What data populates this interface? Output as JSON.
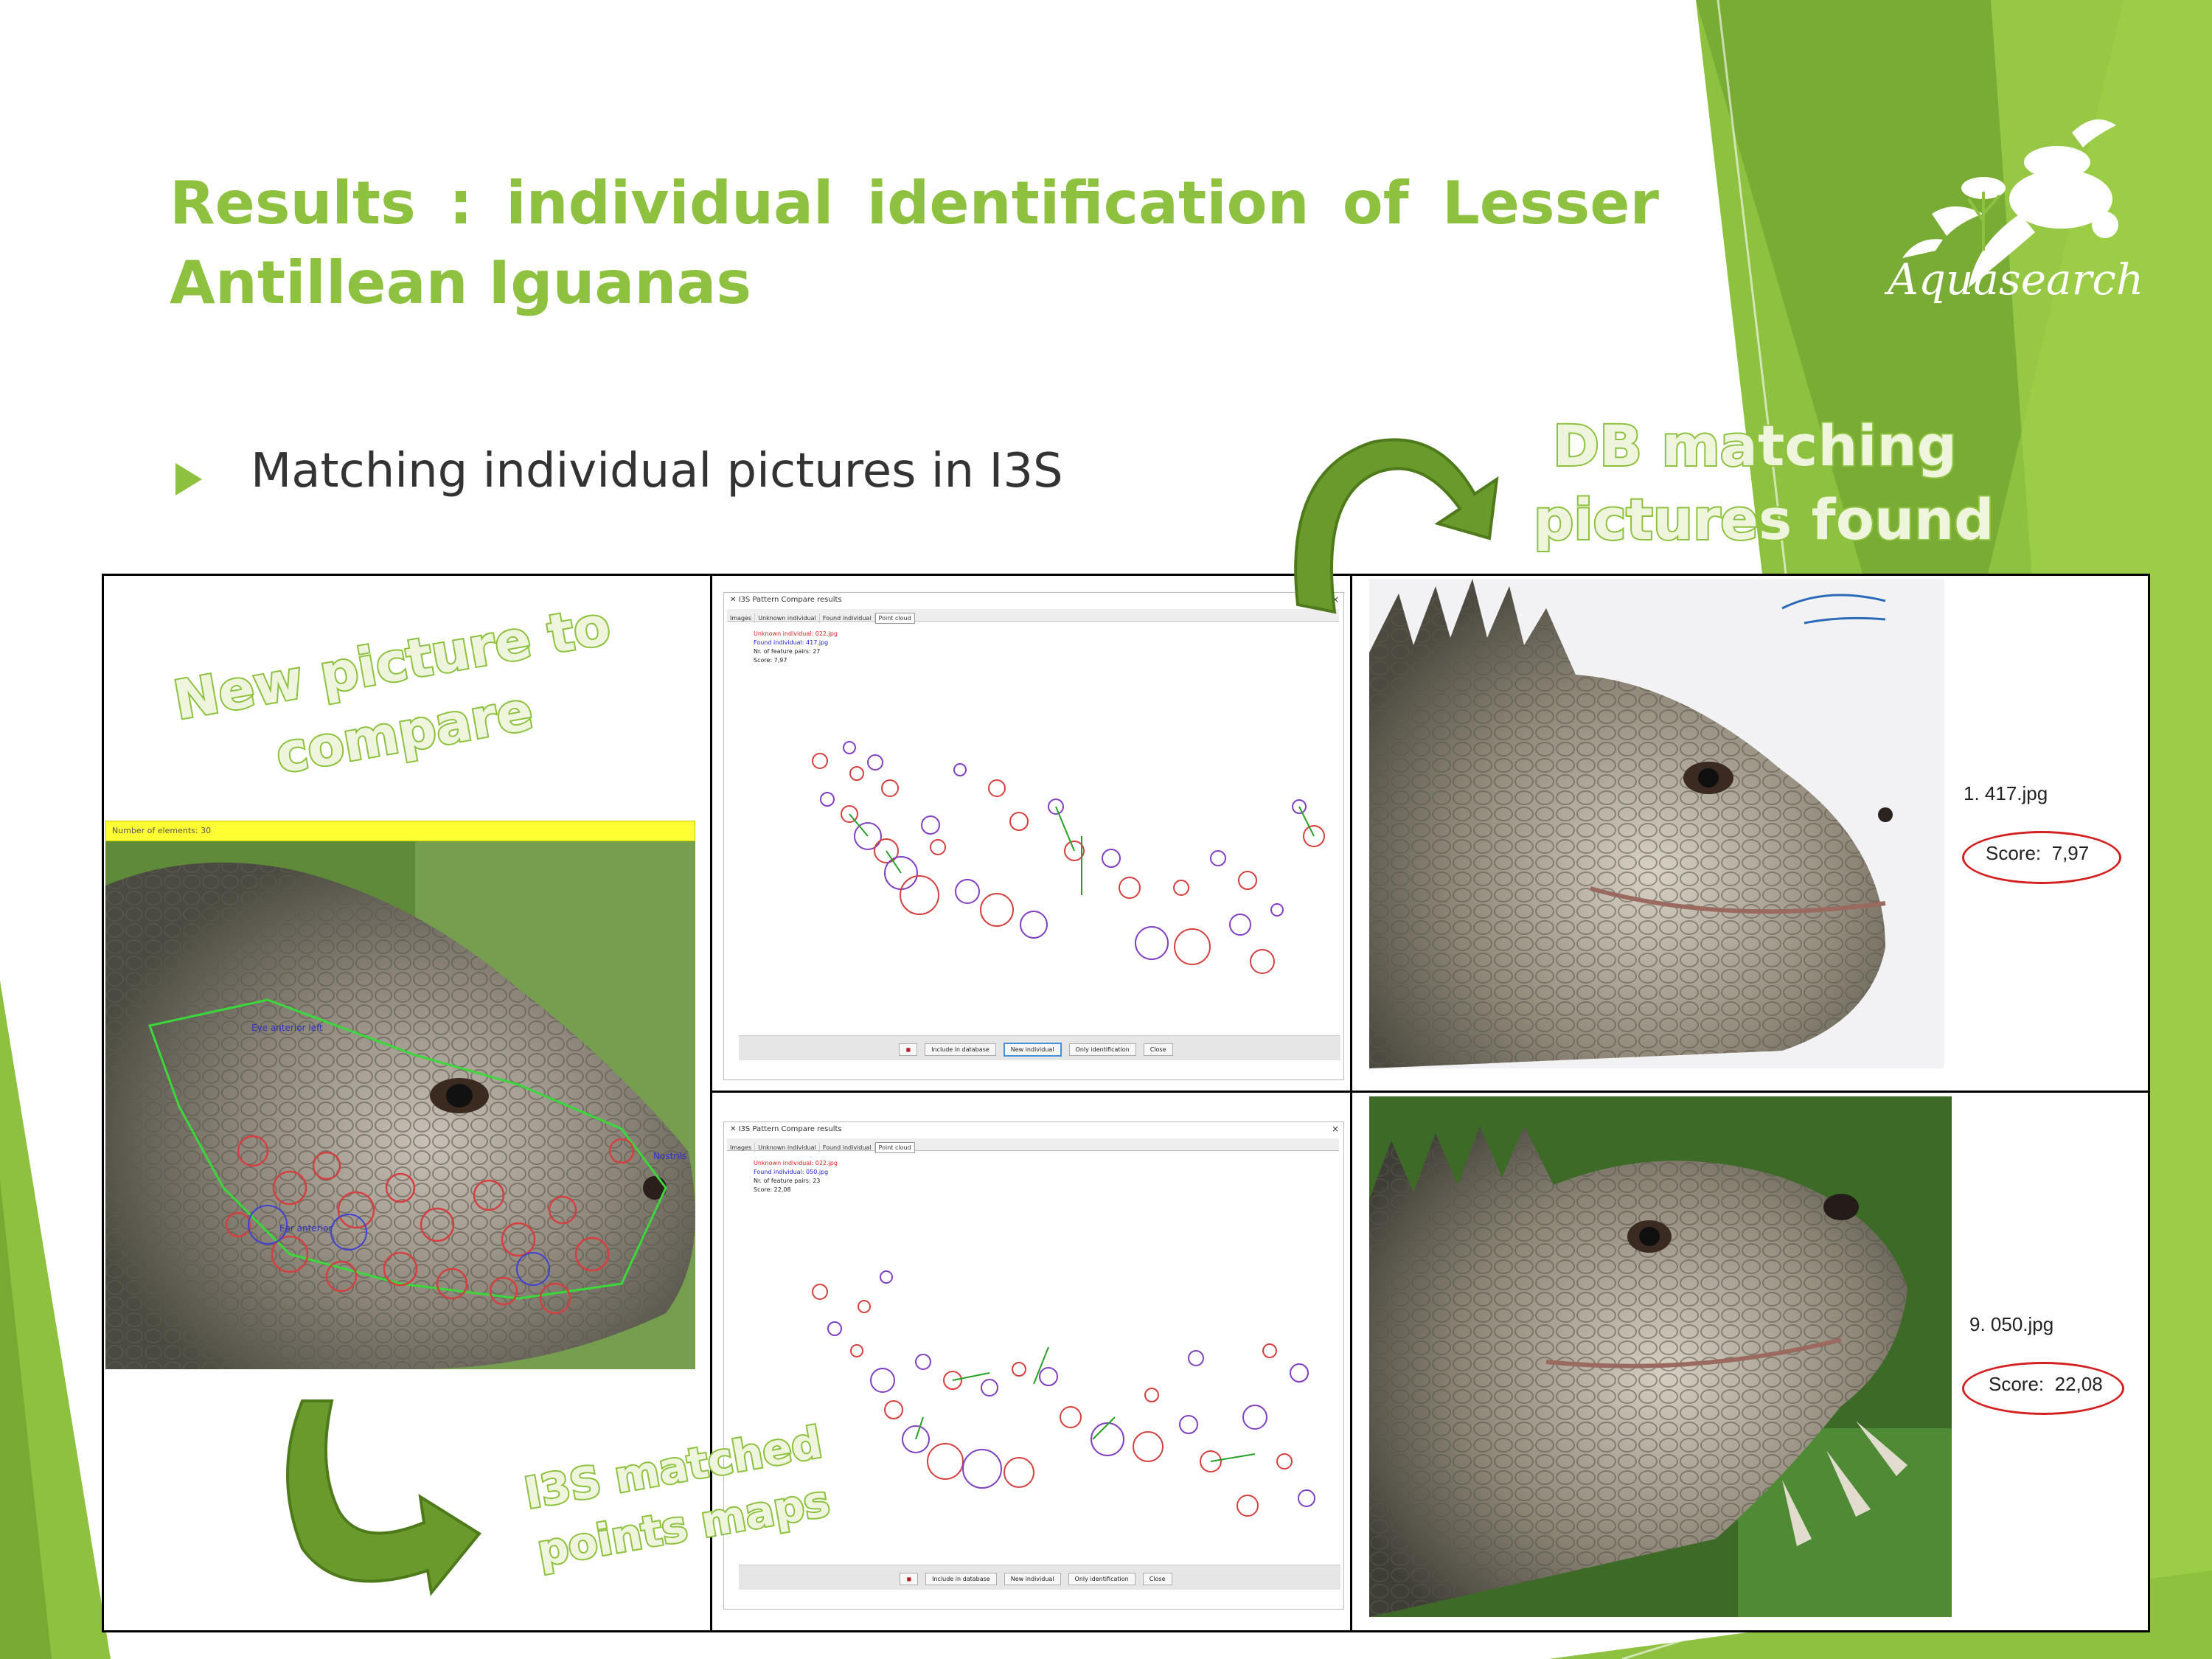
{
  "slide": {
    "title": "Results : individual identification of Lesser Antillean Iguanas",
    "bullet": "Matching individual pictures in I3S",
    "logo_text": "Aquasearch",
    "accent_color": "#8dc13f",
    "dark_green": "#6a9a2b"
  },
  "captions": {
    "db_matching": [
      "DB matching",
      "pictures found"
    ],
    "new_picture": [
      "New picture to",
      "compare"
    ],
    "matched_maps": [
      "I3S matched",
      "points maps"
    ]
  },
  "left_panel": {
    "elements_bar": "Number of elements: 30",
    "label_left": "Eye anterior left",
    "label_right": "Nostrils",
    "label_lower": "Ear anterior"
  },
  "compare_windows": [
    {
      "title": "I3S Pattern Compare results",
      "tabs": [
        "Images",
        "Unknown individual",
        "Found individual",
        "Point cloud"
      ],
      "unknown": "Unknown individual: 022.jpg",
      "found": "Found individual: 417.jpg",
      "pairs": "Nr. of feature pairs: 27",
      "score": "Score: 7,97",
      "buttons": [
        "Include in database",
        "New individual",
        "Only identification",
        "Close"
      ]
    },
    {
      "title": "I3S Pattern Compare results",
      "tabs": [
        "Images",
        "Unknown individual",
        "Found individual",
        "Point cloud"
      ],
      "unknown": "Unknown individual: 022.jpg",
      "found": "Found individual: 050.jpg",
      "pairs": "Nr. of feature pairs: 23",
      "score": "Score: 22,08",
      "buttons": [
        "Include in database",
        "New individual",
        "Only identification",
        "Close"
      ]
    }
  ],
  "matches": [
    {
      "file": "1. 417.jpg",
      "score_label": "Score:",
      "score_value": "7,97"
    },
    {
      "file": "9. 050.jpg",
      "score_label": "Score:",
      "score_value": "22,08"
    }
  ]
}
